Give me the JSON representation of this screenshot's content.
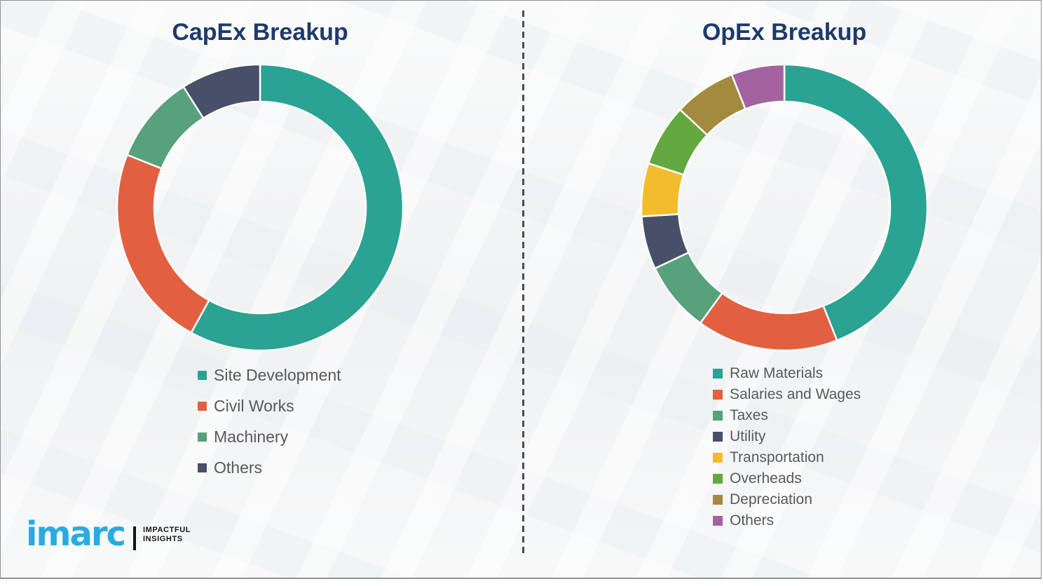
{
  "page": {
    "heading_color": "#1e3a6c",
    "legend_text_color": "#595959",
    "background_color": "#f1f2f3",
    "divider_style": "vertical-dashed"
  },
  "chart_data": [
    {
      "type": "pie",
      "subtype": "donut",
      "title": "CapEx Breakup",
      "start_angle_deg": 0,
      "direction": "clockwise",
      "legend_position": "below-chart-left",
      "data_labels_shown": false,
      "categories": [
        "Site Development",
        "Civil Works",
        "Machinery",
        "Others"
      ],
      "values": [
        58,
        23,
        10,
        9
      ],
      "unit": "% (estimated from arc angles)",
      "colors": [
        "#2aa392",
        "#e2603f",
        "#57a17c",
        "#474f69"
      ]
    },
    {
      "type": "pie",
      "subtype": "donut",
      "title": "OpEx Breakup",
      "start_angle_deg": 0,
      "direction": "clockwise",
      "legend_position": "below-chart-left",
      "data_labels_shown": false,
      "categories": [
        "Raw Materials",
        "Salaries and Wages",
        "Taxes",
        "Utility",
        "Transportation",
        "Overheads",
        "Depreciation",
        "Others"
      ],
      "values": [
        44,
        16,
        8,
        6,
        6,
        7,
        7,
        6
      ],
      "unit": "% (estimated from arc angles)",
      "colors": [
        "#2aa392",
        "#e2603f",
        "#57a17c",
        "#474f69",
        "#f2bc2d",
        "#63a83f",
        "#a38a3f",
        "#a263a0"
      ]
    }
  ],
  "logo": {
    "brand": "imarc",
    "brand_color": "#29abe2",
    "tagline_line1": "IMPACTFUL",
    "tagline_line2": "INSIGHTS"
  }
}
